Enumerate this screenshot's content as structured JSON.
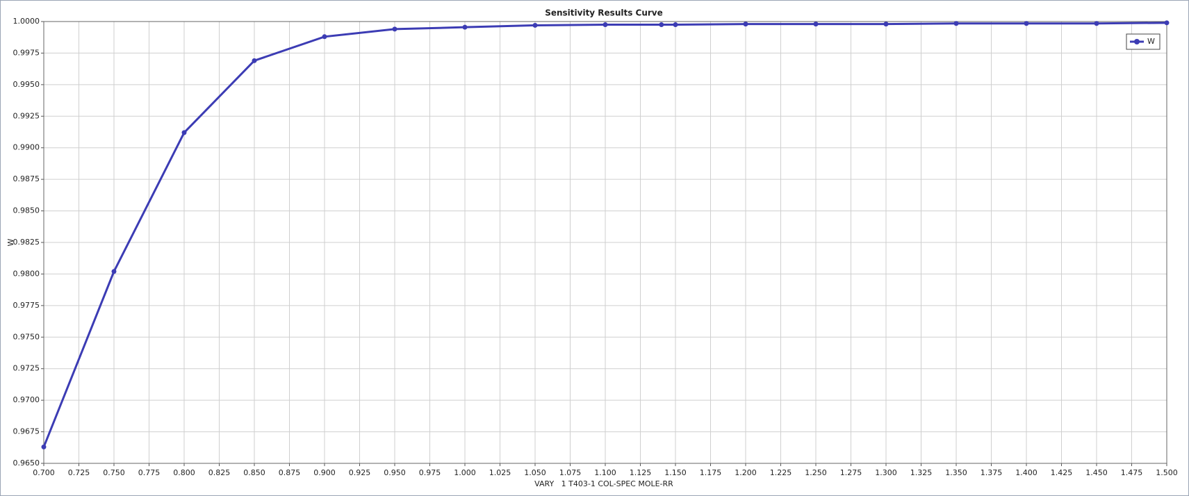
{
  "chart_data": {
    "type": "line",
    "title": "Sensitivity Results Curve",
    "xlabel": "VARY   1 T403-1 COL-SPEC MOLE-RR",
    "ylabel": "W",
    "x": [
      0.7,
      0.75,
      0.8,
      0.85,
      0.9,
      0.95,
      1.0,
      1.05,
      1.1,
      1.14,
      1.15,
      1.2,
      1.25,
      1.3,
      1.35,
      1.4,
      1.45,
      1.5
    ],
    "series": [
      {
        "name": "W",
        "color": "#3c3cb4",
        "values": [
          0.9663,
          0.9802,
          0.9912,
          0.9969,
          0.9988,
          0.9994,
          0.99955,
          0.9997,
          0.99975,
          0.99975,
          0.99975,
          0.9998,
          0.9998,
          0.9998,
          0.99985,
          0.99985,
          0.99985,
          0.9999
        ]
      }
    ],
    "xlim": [
      0.7,
      1.5
    ],
    "xticks": [
      {
        "value": 0.7,
        "label": "0.700"
      },
      {
        "value": 0.725,
        "label": "0.725"
      },
      {
        "value": 0.75,
        "label": "0.750"
      },
      {
        "value": 0.775,
        "label": "0.775"
      },
      {
        "value": 0.8,
        "label": "0.800"
      },
      {
        "value": 0.825,
        "label": "0.825"
      },
      {
        "value": 0.85,
        "label": "0.850"
      },
      {
        "value": 0.875,
        "label": "0.875"
      },
      {
        "value": 0.9,
        "label": "0.900"
      },
      {
        "value": 0.925,
        "label": "0.925"
      },
      {
        "value": 0.95,
        "label": "0.950"
      },
      {
        "value": 0.975,
        "label": "0.975"
      },
      {
        "value": 1.0,
        "label": "1.000"
      },
      {
        "value": 1.025,
        "label": "1.025"
      },
      {
        "value": 1.05,
        "label": "1.050"
      },
      {
        "value": 1.075,
        "label": "1.075"
      },
      {
        "value": 1.1,
        "label": "1.100"
      },
      {
        "value": 1.125,
        "label": "1.125"
      },
      {
        "value": 1.15,
        "label": "1.150"
      },
      {
        "value": 1.175,
        "label": "1.175"
      },
      {
        "value": 1.2,
        "label": "1.200"
      },
      {
        "value": 1.225,
        "label": "1.225"
      },
      {
        "value": 1.25,
        "label": "1.250"
      },
      {
        "value": 1.275,
        "label": "1.275"
      },
      {
        "value": 1.3,
        "label": "1.300"
      },
      {
        "value": 1.325,
        "label": "1.325"
      },
      {
        "value": 1.35,
        "label": "1.350"
      },
      {
        "value": 1.375,
        "label": "1.375"
      },
      {
        "value": 1.4,
        "label": "1.400"
      },
      {
        "value": 1.425,
        "label": "1.425"
      },
      {
        "value": 1.45,
        "label": "1.450"
      },
      {
        "value": 1.475,
        "label": "1.475"
      },
      {
        "value": 1.5,
        "label": "1.500"
      }
    ],
    "ylim": [
      0.965,
      1.0
    ],
    "yticks": [
      {
        "value": 0.965,
        "label": "0.9650"
      },
      {
        "value": 0.9675,
        "label": "0.9675"
      },
      {
        "value": 0.97,
        "label": "0.9700"
      },
      {
        "value": 0.9725,
        "label": "0.9725"
      },
      {
        "value": 0.975,
        "label": "0.9750"
      },
      {
        "value": 0.9775,
        "label": "0.9775"
      },
      {
        "value": 0.98,
        "label": "0.9800"
      },
      {
        "value": 0.9825,
        "label": "0.9825"
      },
      {
        "value": 0.985,
        "label": "0.9850"
      },
      {
        "value": 0.9875,
        "label": "0.9875"
      },
      {
        "value": 0.99,
        "label": "0.9900"
      },
      {
        "value": 0.9925,
        "label": "0.9925"
      },
      {
        "value": 0.995,
        "label": "0.9950"
      },
      {
        "value": 0.9975,
        "label": "0.9975"
      },
      {
        "value": 1.0,
        "label": "1.0000"
      }
    ],
    "grid": true,
    "legend": "upper right"
  }
}
